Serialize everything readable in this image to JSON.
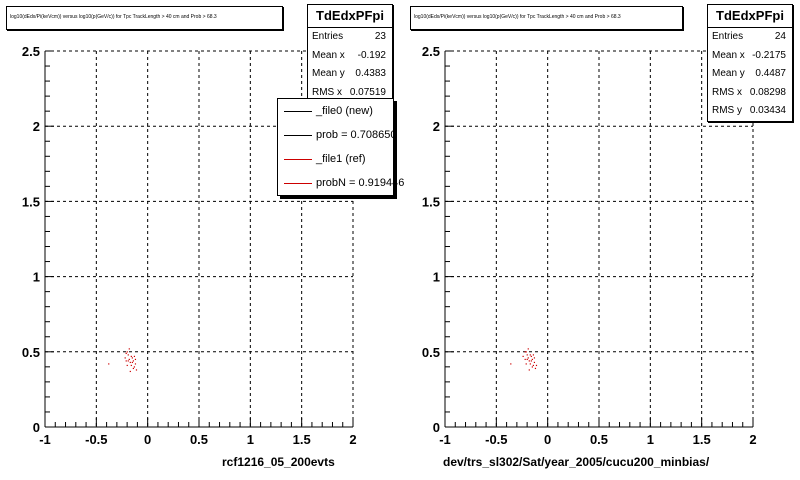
{
  "chart_data": [
    {
      "type": "scatter",
      "title": "log10(dEdx/Pi(keVcm)) versus log10(p(GeV/c)) for Tpc TrackLength > 40 cm and Prob > 68.3",
      "xlabel": "rcf1216_05_200evts",
      "ylabel": "",
      "xlim": [
        -1,
        2
      ],
      "ylim": [
        0,
        2.5
      ],
      "x_ticks": [
        "-1",
        "-0.5",
        "0",
        "0.5",
        "1",
        "1.5",
        "2"
      ],
      "y_ticks": [
        "0",
        "0.5",
        "1",
        "1.5",
        "2",
        "2.5"
      ],
      "grid": true,
      "stats": {
        "title": "TdEdxPFpi",
        "rows": [
          {
            "label": "Entries",
            "value": "23"
          },
          {
            "label": "Mean x",
            "value": "-0.192"
          },
          {
            "label": "Mean y",
            "value": "0.4383"
          },
          {
            "label": "RMS x",
            "value": "0.07519"
          }
        ]
      },
      "legend": [
        {
          "label": "_file0 (new)",
          "color": "#000000"
        },
        {
          "label": "prob = 0.708650",
          "color": "#000000"
        },
        {
          "label": "_file1 (ref)",
          "color": "#cc0000"
        },
        {
          "label": "probN = 0.919446",
          "color": "#cc0000"
        }
      ],
      "series": [
        {
          "color": "#cc0000",
          "points": [
            [
              -0.38,
              0.42
            ],
            [
              -0.22,
              0.46
            ],
            [
              -0.21,
              0.44
            ],
            [
              -0.2,
              0.5
            ],
            [
              -0.19,
              0.48
            ],
            [
              -0.18,
              0.45
            ],
            [
              -0.17,
              0.43
            ],
            [
              -0.16,
              0.41
            ],
            [
              -0.15,
              0.46
            ],
            [
              -0.14,
              0.44
            ],
            [
              -0.13,
              0.4
            ],
            [
              -0.12,
              0.42
            ],
            [
              -0.11,
              0.38
            ],
            [
              -0.18,
              0.52
            ],
            [
              -0.16,
              0.47
            ],
            [
              -0.14,
              0.39
            ],
            [
              -0.2,
              0.41
            ],
            [
              -0.12,
              0.45
            ],
            [
              -0.17,
              0.37
            ],
            [
              -0.15,
              0.43
            ],
            [
              -0.19,
              0.44
            ],
            [
              -0.13,
              0.47
            ],
            [
              -0.21,
              0.49
            ]
          ]
        }
      ]
    },
    {
      "type": "scatter",
      "title": "log10(dEdx/Pi(keVcm)) versus log10(p(GeV/c)) for Tpc TrackLength > 40 cm and Prob > 68.3",
      "xlabel": "dev/trs_sl302/Sat/year_2005/cucu200_minbias/",
      "ylabel": "",
      "xlim": [
        -1,
        2
      ],
      "ylim": [
        0,
        2.5
      ],
      "x_ticks": [
        "-1",
        "-0.5",
        "0",
        "0.5",
        "1",
        "1.5",
        "2"
      ],
      "y_ticks": [
        "0",
        "0.5",
        "1",
        "1.5",
        "2",
        "2.5"
      ],
      "grid": true,
      "stats": {
        "title": "TdEdxPFpi",
        "rows": [
          {
            "label": "Entries",
            "value": "24"
          },
          {
            "label": "Mean x",
            "value": "-0.2175"
          },
          {
            "label": "Mean y",
            "value": "0.4487"
          },
          {
            "label": "RMS x",
            "value": "0.08298"
          },
          {
            "label": "RMS y",
            "value": "0.03434"
          }
        ]
      },
      "series": [
        {
          "color": "#cc0000",
          "points": [
            [
              -0.36,
              0.42
            ],
            [
              -0.24,
              0.47
            ],
            [
              -0.22,
              0.45
            ],
            [
              -0.21,
              0.5
            ],
            [
              -0.2,
              0.48
            ],
            [
              -0.19,
              0.46
            ],
            [
              -0.18,
              0.44
            ],
            [
              -0.17,
              0.42
            ],
            [
              -0.16,
              0.47
            ],
            [
              -0.15,
              0.45
            ],
            [
              -0.14,
              0.41
            ],
            [
              -0.13,
              0.43
            ],
            [
              -0.12,
              0.39
            ],
            [
              -0.19,
              0.52
            ],
            [
              -0.17,
              0.48
            ],
            [
              -0.15,
              0.4
            ],
            [
              -0.21,
              0.42
            ],
            [
              -0.13,
              0.46
            ],
            [
              -0.18,
              0.38
            ],
            [
              -0.16,
              0.44
            ],
            [
              -0.2,
              0.45
            ],
            [
              -0.14,
              0.48
            ],
            [
              -0.22,
              0.5
            ],
            [
              -0.11,
              0.41
            ]
          ]
        }
      ]
    }
  ]
}
